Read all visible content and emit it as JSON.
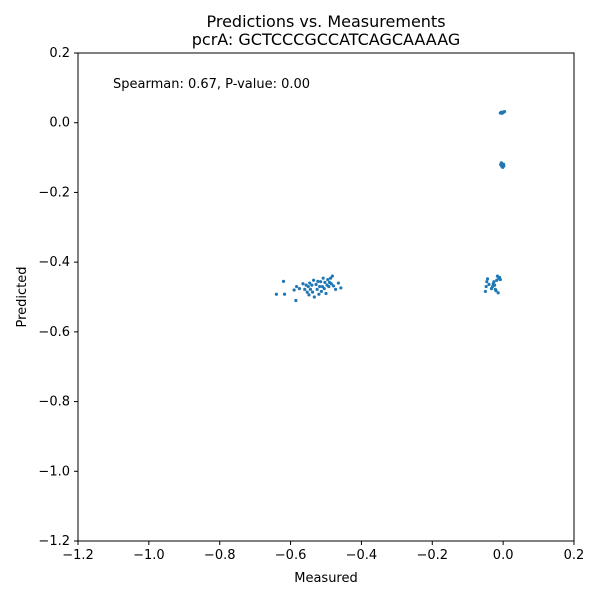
{
  "chart_data": {
    "type": "scatter",
    "title": "Predictions vs. Measurements",
    "subtitle": "pcrA: GCTCCCGCCATCAGCAAAAG",
    "xlabel": "Measured",
    "ylabel": "Predicted",
    "xlim": [
      -1.2,
      0.2
    ],
    "ylim": [
      -1.2,
      0.2
    ],
    "xticks": [
      -1.2,
      -1.0,
      -0.8,
      -0.6,
      -0.4,
      -0.2,
      0.0,
      0.2
    ],
    "yticks": [
      -1.2,
      -1.0,
      -0.8,
      -0.6,
      -0.4,
      -0.2,
      0.0,
      0.2
    ],
    "xtick_labels": [
      "−1.2",
      "−1.0",
      "−0.8",
      "−0.6",
      "−0.4",
      "−0.2",
      "0.0",
      "0.2"
    ],
    "ytick_labels": [
      "−1.2",
      "−1.0",
      "−0.8",
      "−0.6",
      "−0.4",
      "−0.2",
      "0.0",
      "0.2"
    ],
    "annotation": "Spearman: 0.67, P-value: 0.00",
    "grid": false,
    "marker_color": "#1f77b4",
    "points": [
      {
        "x": -0.64,
        "y": -0.492
      },
      {
        "x": -0.62,
        "y": -0.455
      },
      {
        "x": -0.617,
        "y": -0.492
      },
      {
        "x": -0.59,
        "y": -0.48
      },
      {
        "x": -0.585,
        "y": -0.51
      },
      {
        "x": -0.583,
        "y": -0.47
      },
      {
        "x": -0.575,
        "y": -0.476
      },
      {
        "x": -0.565,
        "y": -0.462
      },
      {
        "x": -0.56,
        "y": -0.478
      },
      {
        "x": -0.556,
        "y": -0.466
      },
      {
        "x": -0.553,
        "y": -0.486
      },
      {
        "x": -0.55,
        "y": -0.47
      },
      {
        "x": -0.548,
        "y": -0.494
      },
      {
        "x": -0.546,
        "y": -0.46
      },
      {
        "x": -0.544,
        "y": -0.478
      },
      {
        "x": -0.54,
        "y": -0.466
      },
      {
        "x": -0.538,
        "y": -0.486
      },
      {
        "x": -0.535,
        "y": -0.452
      },
      {
        "x": -0.533,
        "y": -0.5
      },
      {
        "x": -0.528,
        "y": -0.464
      },
      {
        "x": -0.525,
        "y": -0.478
      },
      {
        "x": -0.523,
        "y": -0.455
      },
      {
        "x": -0.52,
        "y": -0.492
      },
      {
        "x": -0.518,
        "y": -0.47
      },
      {
        "x": -0.515,
        "y": -0.456
      },
      {
        "x": -0.513,
        "y": -0.484
      },
      {
        "x": -0.51,
        "y": -0.47
      },
      {
        "x": -0.508,
        "y": -0.446
      },
      {
        "x": -0.505,
        "y": -0.476
      },
      {
        "x": -0.503,
        "y": -0.458
      },
      {
        "x": -0.5,
        "y": -0.49
      },
      {
        "x": -0.497,
        "y": -0.466
      },
      {
        "x": -0.495,
        "y": -0.45
      },
      {
        "x": -0.492,
        "y": -0.47
      },
      {
        "x": -0.49,
        "y": -0.458
      },
      {
        "x": -0.487,
        "y": -0.446
      },
      {
        "x": -0.485,
        "y": -0.462
      },
      {
        "x": -0.482,
        "y": -0.44
      },
      {
        "x": -0.479,
        "y": -0.468
      },
      {
        "x": -0.473,
        "y": -0.478
      },
      {
        "x": -0.465,
        "y": -0.46
      },
      {
        "x": -0.458,
        "y": -0.474
      },
      {
        "x": -0.05,
        "y": -0.484
      },
      {
        "x": -0.048,
        "y": -0.47
      },
      {
        "x": -0.046,
        "y": -0.456
      },
      {
        "x": -0.044,
        "y": -0.448
      },
      {
        "x": -0.04,
        "y": -0.464
      },
      {
        "x": -0.033,
        "y": -0.476
      },
      {
        "x": -0.03,
        "y": -0.47
      },
      {
        "x": -0.028,
        "y": -0.462
      },
      {
        "x": -0.026,
        "y": -0.456
      },
      {
        "x": -0.024,
        "y": -0.466
      },
      {
        "x": -0.022,
        "y": -0.478
      },
      {
        "x": -0.02,
        "y": -0.482
      },
      {
        "x": -0.018,
        "y": -0.452
      },
      {
        "x": -0.016,
        "y": -0.44
      },
      {
        "x": -0.014,
        "y": -0.488
      },
      {
        "x": -0.012,
        "y": -0.446
      },
      {
        "x": -0.01,
        "y": -0.444
      },
      {
        "x": -0.008,
        "y": -0.45
      },
      {
        "x": -0.007,
        "y": -0.12
      },
      {
        "x": -0.005,
        "y": -0.115
      },
      {
        "x": -0.004,
        "y": -0.125
      },
      {
        "x": -0.003,
        "y": -0.118
      },
      {
        "x": -0.002,
        "y": -0.122
      },
      {
        "x": -0.001,
        "y": -0.128
      },
      {
        "x": 0.001,
        "y": -0.119
      },
      {
        "x": 0.002,
        "y": -0.124
      },
      {
        "x": -0.008,
        "y": 0.028
      },
      {
        "x": -0.005,
        "y": 0.03
      },
      {
        "x": -0.003,
        "y": 0.027
      },
      {
        "x": -0.001,
        "y": 0.029
      },
      {
        "x": 0.002,
        "y": 0.031
      },
      {
        "x": 0.004,
        "y": 0.032
      }
    ]
  }
}
